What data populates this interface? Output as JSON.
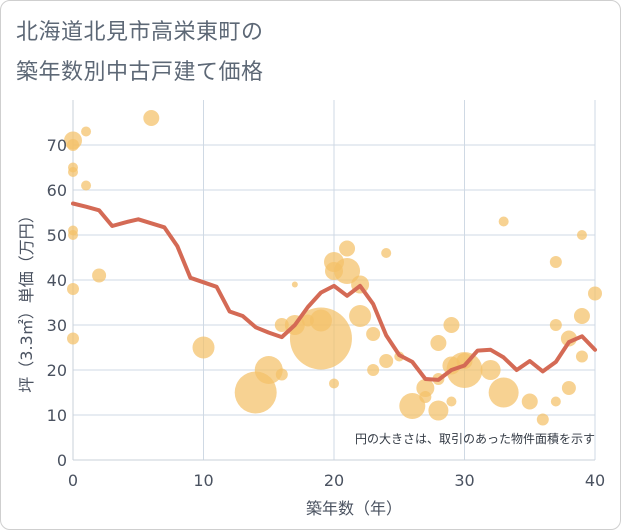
{
  "title_line1": "北海道北見市高栄東町の",
  "title_line2": "築年数別中古戸建て価格",
  "chart_data": {
    "type": "scatter",
    "xlabel": "築年数（年）",
    "ylabel": "坪（3.3㎡）単価（万円）",
    "xlim": [
      0,
      40
    ],
    "ylim": [
      0,
      80
    ],
    "x_ticks": [
      0,
      10,
      20,
      30,
      40
    ],
    "y_ticks": [
      0,
      10,
      20,
      30,
      40,
      50,
      60,
      70
    ],
    "grid": true,
    "annotation": "円の大きさは、取引のあった物件面積を示す",
    "bubble_color": "#f4c068",
    "line_color": "#d46a55",
    "bubbles": [
      {
        "x": 0,
        "y": 71,
        "s": 9
      },
      {
        "x": 0,
        "y": 70,
        "s": 6
      },
      {
        "x": 0,
        "y": 65,
        "s": 5
      },
      {
        "x": 0,
        "y": 64,
        "s": 5
      },
      {
        "x": 0,
        "y": 51,
        "s": 5
      },
      {
        "x": 0,
        "y": 50,
        "s": 5
      },
      {
        "x": 0,
        "y": 38,
        "s": 6
      },
      {
        "x": 0,
        "y": 27,
        "s": 6
      },
      {
        "x": 1,
        "y": 73,
        "s": 5
      },
      {
        "x": 1,
        "y": 61,
        "s": 5
      },
      {
        "x": 2,
        "y": 41,
        "s": 7
      },
      {
        "x": 6,
        "y": 76,
        "s": 8
      },
      {
        "x": 10,
        "y": 25,
        "s": 11
      },
      {
        "x": 14,
        "y": 15,
        "s": 21
      },
      {
        "x": 15,
        "y": 20,
        "s": 14
      },
      {
        "x": 16,
        "y": 19,
        "s": 6
      },
      {
        "x": 16,
        "y": 30,
        "s": 7
      },
      {
        "x": 17,
        "y": 30,
        "s": 10
      },
      {
        "x": 17,
        "y": 39,
        "s": 3
      },
      {
        "x": 18,
        "y": 31,
        "s": 6
      },
      {
        "x": 19,
        "y": 27,
        "s": 31
      },
      {
        "x": 19,
        "y": 31,
        "s": 11
      },
      {
        "x": 20,
        "y": 44,
        "s": 10
      },
      {
        "x": 20,
        "y": 42,
        "s": 9
      },
      {
        "x": 20,
        "y": 17,
        "s": 5
      },
      {
        "x": 21,
        "y": 47,
        "s": 8
      },
      {
        "x": 21,
        "y": 42,
        "s": 13
      },
      {
        "x": 22,
        "y": 39,
        "s": 9
      },
      {
        "x": 22,
        "y": 32,
        "s": 11
      },
      {
        "x": 23,
        "y": 28,
        "s": 7
      },
      {
        "x": 23,
        "y": 20,
        "s": 6
      },
      {
        "x": 24,
        "y": 46,
        "s": 5
      },
      {
        "x": 24,
        "y": 22,
        "s": 7
      },
      {
        "x": 25,
        "y": 23,
        "s": 5
      },
      {
        "x": 26,
        "y": 12,
        "s": 13
      },
      {
        "x": 27,
        "y": 16,
        "s": 9
      },
      {
        "x": 27,
        "y": 14,
        "s": 6
      },
      {
        "x": 28,
        "y": 11,
        "s": 10
      },
      {
        "x": 28,
        "y": 26,
        "s": 8
      },
      {
        "x": 28,
        "y": 18,
        "s": 6
      },
      {
        "x": 29,
        "y": 30,
        "s": 8
      },
      {
        "x": 29,
        "y": 21,
        "s": 9
      },
      {
        "x": 29,
        "y": 13,
        "s": 5
      },
      {
        "x": 30,
        "y": 20,
        "s": 18
      },
      {
        "x": 30,
        "y": 22,
        "s": 8
      },
      {
        "x": 32,
        "y": 20,
        "s": 10
      },
      {
        "x": 33,
        "y": 15,
        "s": 15
      },
      {
        "x": 33,
        "y": 53,
        "s": 5
      },
      {
        "x": 35,
        "y": 13,
        "s": 8
      },
      {
        "x": 36,
        "y": 9,
        "s": 6
      },
      {
        "x": 37,
        "y": 44,
        "s": 6
      },
      {
        "x": 37,
        "y": 30,
        "s": 6
      },
      {
        "x": 37,
        "y": 13,
        "s": 5
      },
      {
        "x": 38,
        "y": 27,
        "s": 8
      },
      {
        "x": 38,
        "y": 16,
        "s": 7
      },
      {
        "x": 39,
        "y": 50,
        "s": 5
      },
      {
        "x": 39,
        "y": 32,
        "s": 8
      },
      {
        "x": 39,
        "y": 23,
        "s": 6
      },
      {
        "x": 40,
        "y": 37,
        "s": 7
      }
    ],
    "line": [
      {
        "x": 0,
        "y": 57
      },
      {
        "x": 1,
        "y": 56.3
      },
      {
        "x": 2,
        "y": 55.5
      },
      {
        "x": 3,
        "y": 52
      },
      {
        "x": 4,
        "y": 52.8
      },
      {
        "x": 5,
        "y": 53.5
      },
      {
        "x": 6,
        "y": 52.6
      },
      {
        "x": 7,
        "y": 51.7
      },
      {
        "x": 8,
        "y": 47.5
      },
      {
        "x": 9,
        "y": 40.5
      },
      {
        "x": 10,
        "y": 39.5
      },
      {
        "x": 11,
        "y": 38.5
      },
      {
        "x": 12,
        "y": 33
      },
      {
        "x": 13,
        "y": 32
      },
      {
        "x": 14,
        "y": 29.5
      },
      {
        "x": 15,
        "y": 28.3
      },
      {
        "x": 16,
        "y": 27.3
      },
      {
        "x": 17,
        "y": 30
      },
      {
        "x": 18,
        "y": 34
      },
      {
        "x": 19,
        "y": 37.2
      },
      {
        "x": 20,
        "y": 38.7
      },
      {
        "x": 21,
        "y": 36.5
      },
      {
        "x": 22,
        "y": 38.7
      },
      {
        "x": 23,
        "y": 34.7
      },
      {
        "x": 24,
        "y": 27.7
      },
      {
        "x": 25,
        "y": 23.3
      },
      {
        "x": 26,
        "y": 21.8
      },
      {
        "x": 27,
        "y": 18
      },
      {
        "x": 28,
        "y": 17.8
      },
      {
        "x": 29,
        "y": 20
      },
      {
        "x": 30,
        "y": 21
      },
      {
        "x": 31,
        "y": 24.3
      },
      {
        "x": 32,
        "y": 24.5
      },
      {
        "x": 33,
        "y": 22.8
      },
      {
        "x": 34,
        "y": 20
      },
      {
        "x": 35,
        "y": 22
      },
      {
        "x": 36,
        "y": 19.7
      },
      {
        "x": 37,
        "y": 21.8
      },
      {
        "x": 38,
        "y": 26.2
      },
      {
        "x": 39,
        "y": 27.5
      },
      {
        "x": 40,
        "y": 24.5
      }
    ]
  }
}
